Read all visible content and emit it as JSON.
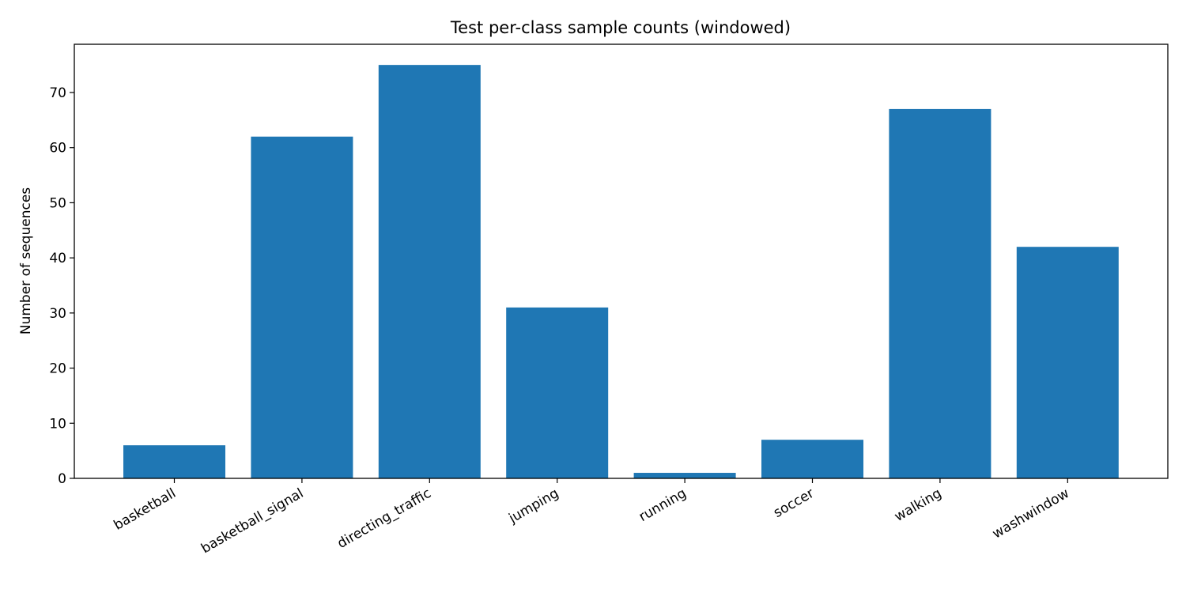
{
  "chart_data": {
    "type": "bar",
    "title": "Test per-class sample counts (windowed)",
    "xlabel": "",
    "ylabel": "Number of sequences",
    "categories": [
      "basketball",
      "basketball_signal",
      "directing_traffic",
      "jumping",
      "running",
      "soccer",
      "walking",
      "washwindow"
    ],
    "values": [
      6,
      62,
      75,
      31,
      1,
      7,
      67,
      42
    ],
    "ylim": [
      0,
      78.75
    ],
    "yticks": [
      0,
      10,
      20,
      30,
      40,
      50,
      60,
      70
    ],
    "grid": false,
    "legend": "none",
    "bar_color": "#1f77b4"
  }
}
